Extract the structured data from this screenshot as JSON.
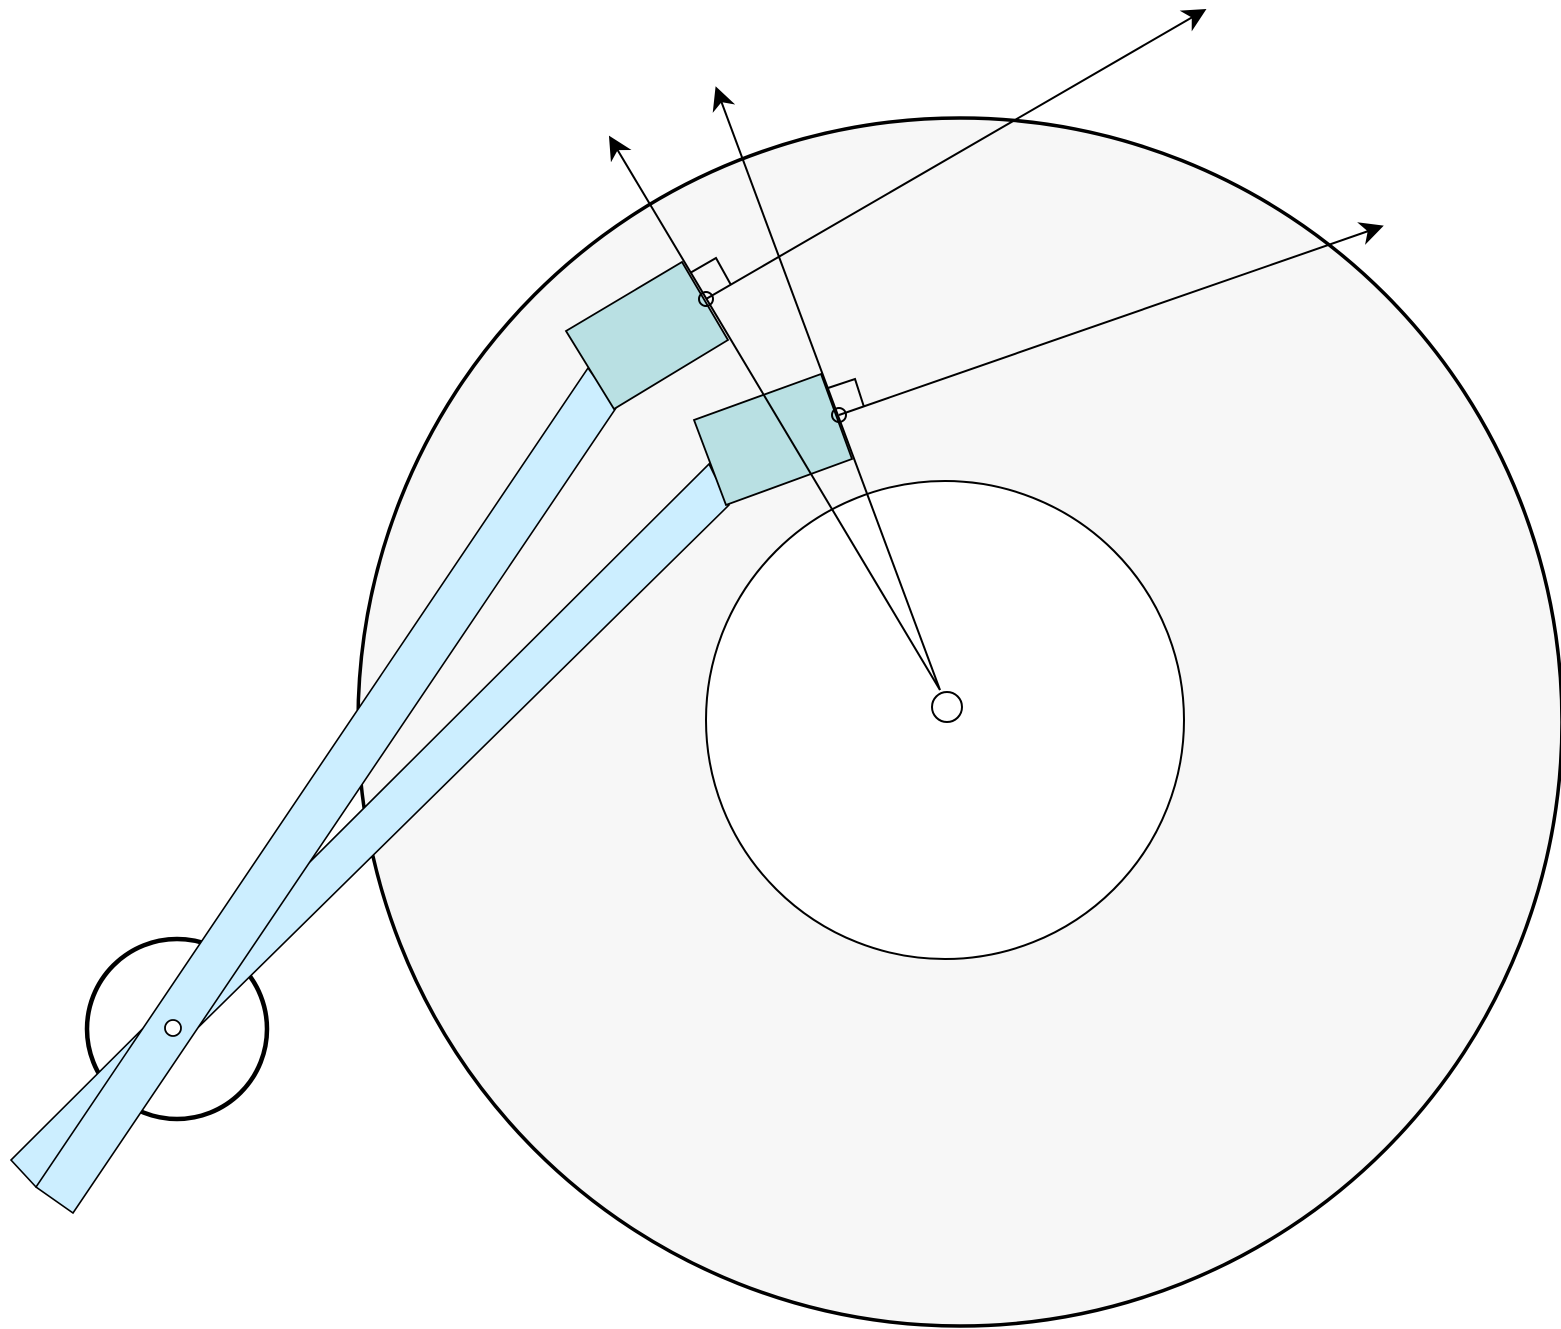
{
  "diagram": {
    "kind": "hard-disk-head-arm-geometry",
    "platter_fill": "#f7f7f7",
    "hub_fill": "#ffffff",
    "arm_fill": "#cceeff",
    "slider_fill": "#b9e0e3",
    "stroke": "#000000",
    "components": [
      "outer-platter-circle",
      "inner-hub-circle",
      "spindle-center",
      "actuator-pivot",
      "arm-position-1",
      "arm-position-2",
      "slider-head-1",
      "slider-head-2",
      "radial-ray-1",
      "radial-ray-2",
      "tangent-arrow-1",
      "tangent-arrow-2",
      "right-angle-marker-1",
      "right-angle-marker-2"
    ],
    "icons": [
      "arrowhead-icon",
      "right-angle-icon",
      "pivot-marker-icon"
    ]
  }
}
